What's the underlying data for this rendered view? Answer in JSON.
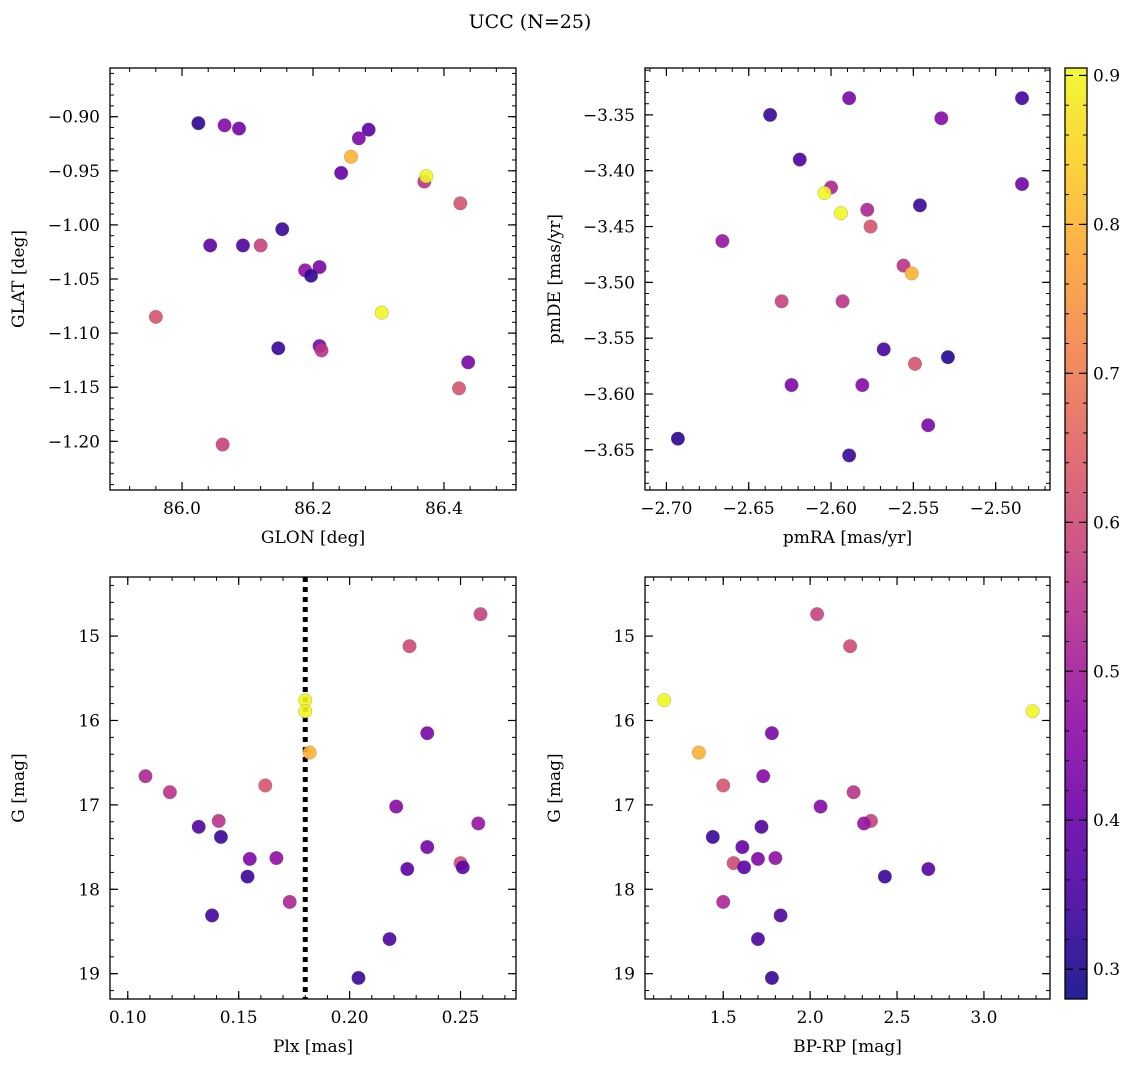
{
  "figure": {
    "title": "UCC (N=25)"
  },
  "colorbar": {
    "ticks": [
      0.3,
      0.4,
      0.5,
      0.6,
      0.7,
      0.8,
      0.9
    ],
    "range": [
      0.28,
      0.905
    ],
    "colormap": "plasma"
  },
  "chart_data": [
    {
      "type": "scatter",
      "id": "glon-glat",
      "xlabel": "GLON [deg]",
      "ylabel": "GLAT [deg]",
      "xlim": [
        85.89,
        86.51
      ],
      "ylim": [
        -1.245,
        -0.855
      ],
      "xticks": [
        86.0,
        86.2,
        86.4
      ],
      "yticks": [
        -0.9,
        -0.95,
        -1.0,
        -1.05,
        -1.1,
        -1.15,
        -1.2
      ],
      "xtick_decimals": 1,
      "ytick_decimals": 2,
      "points": [
        {
          "x": 86.025,
          "y": -0.906,
          "c": 0.32
        },
        {
          "x": 86.065,
          "y": -0.908,
          "c": 0.45
        },
        {
          "x": 86.087,
          "y": -0.911,
          "c": 0.42
        },
        {
          "x": 86.27,
          "y": -0.92,
          "c": 0.44
        },
        {
          "x": 86.285,
          "y": -0.912,
          "c": 0.38
        },
        {
          "x": 86.258,
          "y": -0.937,
          "c": 0.8
        },
        {
          "x": 86.243,
          "y": -0.952,
          "c": 0.4
        },
        {
          "x": 86.37,
          "y": -0.96,
          "c": 0.55
        },
        {
          "x": 86.373,
          "y": -0.955,
          "c": 0.9
        },
        {
          "x": 86.425,
          "y": -0.98,
          "c": 0.62
        },
        {
          "x": 86.153,
          "y": -1.004,
          "c": 0.33
        },
        {
          "x": 86.043,
          "y": -1.019,
          "c": 0.38
        },
        {
          "x": 86.093,
          "y": -1.019,
          "c": 0.36
        },
        {
          "x": 86.12,
          "y": -1.019,
          "c": 0.58
        },
        {
          "x": 86.188,
          "y": -1.042,
          "c": 0.47
        },
        {
          "x": 86.21,
          "y": -1.039,
          "c": 0.43
        },
        {
          "x": 86.197,
          "y": -1.047,
          "c": 0.32
        },
        {
          "x": 86.305,
          "y": -1.081,
          "c": 0.9
        },
        {
          "x": 85.96,
          "y": -1.085,
          "c": 0.62
        },
        {
          "x": 86.147,
          "y": -1.114,
          "c": 0.33
        },
        {
          "x": 86.21,
          "y": -1.112,
          "c": 0.43
        },
        {
          "x": 86.213,
          "y": -1.116,
          "c": 0.55
        },
        {
          "x": 86.437,
          "y": -1.127,
          "c": 0.43
        },
        {
          "x": 86.423,
          "y": -1.151,
          "c": 0.62
        },
        {
          "x": 86.062,
          "y": -1.203,
          "c": 0.58
        }
      ]
    },
    {
      "type": "scatter",
      "id": "pmra-pmde",
      "xlabel": "pmRA [mas/yr]",
      "ylabel": "pmDE [mas/yr]",
      "xlim": [
        -2.713,
        -2.467
      ],
      "ylim": [
        -3.686,
        -3.308
      ],
      "xticks": [
        -2.7,
        -2.65,
        -2.6,
        -2.55,
        -2.5
      ],
      "yticks": [
        -3.35,
        -3.4,
        -3.45,
        -3.5,
        -3.55,
        -3.6,
        -3.65
      ],
      "xtick_decimals": 2,
      "ytick_decimals": 2,
      "points": [
        {
          "x": -2.637,
          "y": -3.35,
          "c": 0.33
        },
        {
          "x": -2.589,
          "y": -3.335,
          "c": 0.43
        },
        {
          "x": -2.533,
          "y": -3.353,
          "c": 0.45
        },
        {
          "x": -2.484,
          "y": -3.335,
          "c": 0.35
        },
        {
          "x": -2.619,
          "y": -3.39,
          "c": 0.36
        },
        {
          "x": -2.6,
          "y": -3.415,
          "c": 0.52
        },
        {
          "x": -2.604,
          "y": -3.42,
          "c": 0.9
        },
        {
          "x": -2.594,
          "y": -3.438,
          "c": 0.9
        },
        {
          "x": -2.578,
          "y": -3.435,
          "c": 0.52
        },
        {
          "x": -2.576,
          "y": -3.45,
          "c": 0.62
        },
        {
          "x": -2.546,
          "y": -3.431,
          "c": 0.33
        },
        {
          "x": -2.484,
          "y": -3.412,
          "c": 0.42
        },
        {
          "x": -2.666,
          "y": -3.463,
          "c": 0.48
        },
        {
          "x": -2.556,
          "y": -3.485,
          "c": 0.55
        },
        {
          "x": -2.551,
          "y": -3.492,
          "c": 0.8
        },
        {
          "x": -2.63,
          "y": -3.517,
          "c": 0.58
        },
        {
          "x": -2.593,
          "y": -3.517,
          "c": 0.55
        },
        {
          "x": -2.568,
          "y": -3.56,
          "c": 0.35
        },
        {
          "x": -2.549,
          "y": -3.573,
          "c": 0.62
        },
        {
          "x": -2.529,
          "y": -3.567,
          "c": 0.31
        },
        {
          "x": -2.624,
          "y": -3.592,
          "c": 0.44
        },
        {
          "x": -2.581,
          "y": -3.592,
          "c": 0.45
        },
        {
          "x": -2.541,
          "y": -3.628,
          "c": 0.43
        },
        {
          "x": -2.693,
          "y": -3.64,
          "c": 0.32
        },
        {
          "x": -2.589,
          "y": -3.655,
          "c": 0.33
        }
      ]
    },
    {
      "type": "scatter",
      "id": "plx-g",
      "xlabel": "Plx [mas]",
      "ylabel": "G [mag]",
      "xlim": [
        0.092,
        0.275
      ],
      "ylim": [
        19.3,
        14.3
      ],
      "xticks": [
        0.1,
        0.15,
        0.2,
        0.25
      ],
      "yticks": [
        15,
        16,
        17,
        18,
        19
      ],
      "xtick_decimals": 2,
      "ytick_decimals": 0,
      "vline": 0.18,
      "points": [
        {
          "x": 0.259,
          "y": 14.74,
          "c": 0.58
        },
        {
          "x": 0.227,
          "y": 15.12,
          "c": 0.6
        },
        {
          "x": 0.18,
          "y": 15.76,
          "c": 0.9
        },
        {
          "x": 0.18,
          "y": 15.89,
          "c": 0.9
        },
        {
          "x": 0.182,
          "y": 16.38,
          "c": 0.8
        },
        {
          "x": 0.235,
          "y": 16.15,
          "c": 0.43
        },
        {
          "x": 0.108,
          "y": 16.66,
          "c": 0.52
        },
        {
          "x": 0.162,
          "y": 16.77,
          "c": 0.62
        },
        {
          "x": 0.119,
          "y": 16.85,
          "c": 0.55
        },
        {
          "x": 0.221,
          "y": 17.02,
          "c": 0.45
        },
        {
          "x": 0.141,
          "y": 17.19,
          "c": 0.55
        },
        {
          "x": 0.258,
          "y": 17.22,
          "c": 0.48
        },
        {
          "x": 0.132,
          "y": 17.26,
          "c": 0.36
        },
        {
          "x": 0.142,
          "y": 17.38,
          "c": 0.33
        },
        {
          "x": 0.235,
          "y": 17.5,
          "c": 0.42
        },
        {
          "x": 0.155,
          "y": 17.64,
          "c": 0.44
        },
        {
          "x": 0.167,
          "y": 17.63,
          "c": 0.47
        },
        {
          "x": 0.25,
          "y": 17.69,
          "c": 0.6
        },
        {
          "x": 0.251,
          "y": 17.74,
          "c": 0.38
        },
        {
          "x": 0.226,
          "y": 17.76,
          "c": 0.38
        },
        {
          "x": 0.154,
          "y": 17.85,
          "c": 0.33
        },
        {
          "x": 0.173,
          "y": 18.15,
          "c": 0.52
        },
        {
          "x": 0.138,
          "y": 18.31,
          "c": 0.35
        },
        {
          "x": 0.218,
          "y": 18.59,
          "c": 0.36
        },
        {
          "x": 0.204,
          "y": 19.05,
          "c": 0.33
        }
      ]
    },
    {
      "type": "scatter",
      "id": "bprp-g",
      "xlabel": "BP-RP [mag]",
      "ylabel": "G [mag]",
      "xlim": [
        1.05,
        3.38
      ],
      "ylim": [
        19.3,
        14.3
      ],
      "xticks": [
        1.5,
        2.0,
        2.5,
        3.0
      ],
      "yticks": [
        15,
        16,
        17,
        18,
        19
      ],
      "xtick_decimals": 1,
      "ytick_decimals": 0,
      "points": [
        {
          "x": 2.04,
          "y": 14.74,
          "c": 0.58
        },
        {
          "x": 2.23,
          "y": 15.12,
          "c": 0.6
        },
        {
          "x": 1.16,
          "y": 15.76,
          "c": 0.9
        },
        {
          "x": 3.28,
          "y": 15.89,
          "c": 0.9
        },
        {
          "x": 1.36,
          "y": 16.38,
          "c": 0.8
        },
        {
          "x": 1.78,
          "y": 16.15,
          "c": 0.43
        },
        {
          "x": 1.73,
          "y": 16.66,
          "c": 0.45
        },
        {
          "x": 1.5,
          "y": 16.77,
          "c": 0.62
        },
        {
          "x": 2.25,
          "y": 16.85,
          "c": 0.55
        },
        {
          "x": 2.06,
          "y": 17.02,
          "c": 0.45
        },
        {
          "x": 2.35,
          "y": 17.19,
          "c": 0.58
        },
        {
          "x": 2.31,
          "y": 17.22,
          "c": 0.48
        },
        {
          "x": 1.72,
          "y": 17.26,
          "c": 0.36
        },
        {
          "x": 1.44,
          "y": 17.38,
          "c": 0.33
        },
        {
          "x": 1.61,
          "y": 17.5,
          "c": 0.4
        },
        {
          "x": 1.7,
          "y": 17.64,
          "c": 0.44
        },
        {
          "x": 1.8,
          "y": 17.63,
          "c": 0.47
        },
        {
          "x": 1.56,
          "y": 17.69,
          "c": 0.6
        },
        {
          "x": 1.62,
          "y": 17.74,
          "c": 0.38
        },
        {
          "x": 2.68,
          "y": 17.76,
          "c": 0.38
        },
        {
          "x": 2.43,
          "y": 17.85,
          "c": 0.33
        },
        {
          "x": 1.5,
          "y": 18.15,
          "c": 0.52
        },
        {
          "x": 1.83,
          "y": 18.31,
          "c": 0.36
        },
        {
          "x": 1.7,
          "y": 18.59,
          "c": 0.36
        },
        {
          "x": 1.78,
          "y": 19.05,
          "c": 0.33
        }
      ]
    }
  ]
}
